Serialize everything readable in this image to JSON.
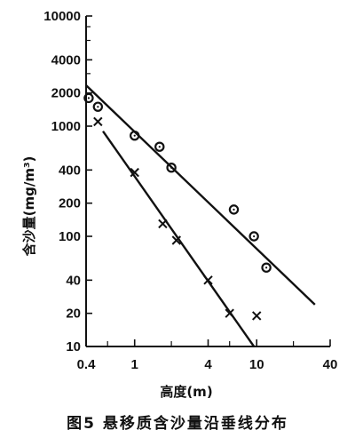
{
  "chart_data": {
    "type": "scatter",
    "title": "",
    "caption": "图5 悬移质含沙量沿垂线分布",
    "xlabel": "高度(m)",
    "ylabel": "含沙量(mg/m³)",
    "x_scale": "log",
    "y_scale": "log",
    "xlim": [
      0.4,
      40
    ],
    "ylim": [
      10,
      10000
    ],
    "x_ticks": [
      0.4,
      1,
      4,
      10,
      40
    ],
    "x_tick_labels": [
      "0.4",
      "1",
      "4",
      "10",
      "40"
    ],
    "y_ticks": [
      10,
      20,
      40,
      100,
      200,
      400,
      1000,
      2000,
      4000,
      10000
    ],
    "y_tick_labels": [
      "10",
      "20",
      "40",
      "100",
      "200",
      "400",
      "1000",
      "2000",
      "4000",
      "10000"
    ],
    "grid": false,
    "legend": "none",
    "series": [
      {
        "marker": "circle",
        "points": [
          [
            0.42,
            1800
          ],
          [
            0.5,
            1500
          ],
          [
            1.0,
            820
          ],
          [
            1.6,
            650
          ],
          [
            2.0,
            420
          ],
          [
            6.5,
            175
          ],
          [
            9.5,
            100
          ],
          [
            12.0,
            52
          ]
        ],
        "fit": [
          [
            0.4,
            2350
          ],
          [
            30,
            24
          ]
        ]
      },
      {
        "marker": "x",
        "points": [
          [
            0.5,
            1100
          ],
          [
            1.0,
            380
          ],
          [
            1.7,
            130
          ],
          [
            2.2,
            92
          ],
          [
            4.0,
            40
          ],
          [
            6.0,
            20
          ],
          [
            10.0,
            19
          ]
        ],
        "fit": [
          [
            0.55,
            900
          ],
          [
            9.5,
            10
          ]
        ]
      }
    ]
  }
}
